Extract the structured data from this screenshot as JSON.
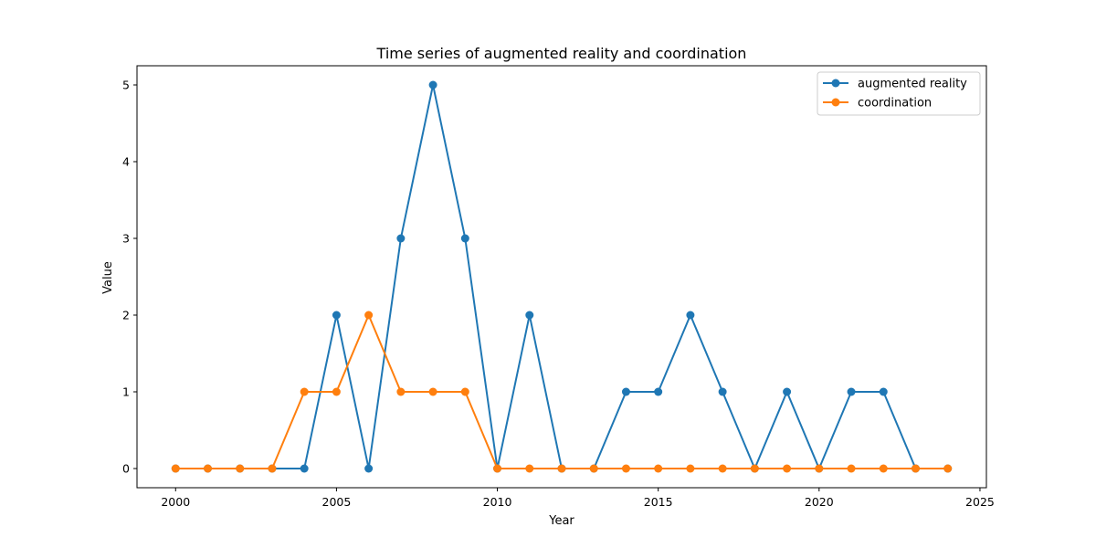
{
  "chart_data": {
    "type": "line",
    "title": "Time series of augmented reality and coordination",
    "xlabel": "Year",
    "ylabel": "Value",
    "xlim": [
      1998.8,
      2025.2
    ],
    "ylim": [
      -0.25,
      5.25
    ],
    "xticks": [
      2000,
      2005,
      2010,
      2015,
      2020,
      2025
    ],
    "yticks": [
      0,
      1,
      2,
      3,
      4,
      5
    ],
    "grid": false,
    "legend_position": "top-right",
    "x": [
      2000,
      2001,
      2002,
      2003,
      2004,
      2005,
      2006,
      2007,
      2008,
      2009,
      2010,
      2011,
      2012,
      2013,
      2014,
      2015,
      2016,
      2017,
      2018,
      2019,
      2020,
      2021,
      2022,
      2023,
      2024
    ],
    "series": [
      {
        "name": "augmented reality",
        "color": "#1f77b4",
        "values": [
          0,
          0,
          0,
          0,
          0,
          2,
          0,
          3,
          5,
          3,
          0,
          2,
          0,
          0,
          1,
          1,
          2,
          1,
          0,
          1,
          0,
          1,
          1,
          0,
          0
        ]
      },
      {
        "name": "coordination",
        "color": "#ff7f0e",
        "values": [
          0,
          0,
          0,
          0,
          1,
          1,
          2,
          1,
          1,
          1,
          0,
          0,
          0,
          0,
          0,
          0,
          0,
          0,
          0,
          0,
          0,
          0,
          0,
          0,
          0
        ]
      }
    ]
  }
}
